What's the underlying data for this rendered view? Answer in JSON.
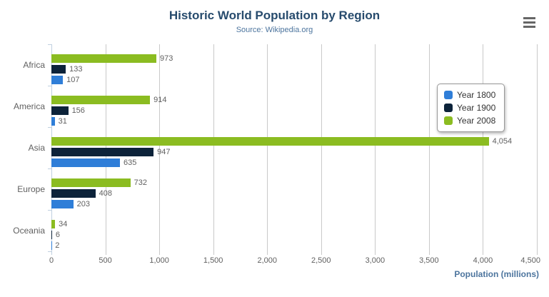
{
  "title": "Historic World Population by Region",
  "subtitle": "Source: Wikipedia.org",
  "ui": {
    "context_menu_icon": "hamburger-menu-icon"
  },
  "chart_data": {
    "type": "bar",
    "orientation": "horizontal",
    "title": "Historic World Population by Region",
    "subtitle": "Source: Wikipedia.org",
    "categories": [
      "Africa",
      "America",
      "Asia",
      "Europe",
      "Oceania"
    ],
    "series": [
      {
        "name": "Year 1800",
        "color": "#2f7ed8",
        "values": [
          107,
          31,
          635,
          203,
          2
        ]
      },
      {
        "name": "Year 1900",
        "color": "#0d233a",
        "values": [
          133,
          156,
          947,
          408,
          6
        ]
      },
      {
        "name": "Year 2008",
        "color": "#8bbc21",
        "values": [
          973,
          914,
          4054,
          732,
          34
        ]
      }
    ],
    "bar_order_top_to_bottom": [
      "Year 2008",
      "Year 1900",
      "Year 1800"
    ],
    "xlabel": "Population (millions)",
    "ylabel": "",
    "xlim": [
      0,
      4500
    ],
    "x_ticks": [
      0,
      500,
      1000,
      1500,
      2000,
      2500,
      3000,
      3500,
      4000,
      4500
    ],
    "grid": true,
    "legend_position": "right-floating",
    "data_labels": true
  }
}
